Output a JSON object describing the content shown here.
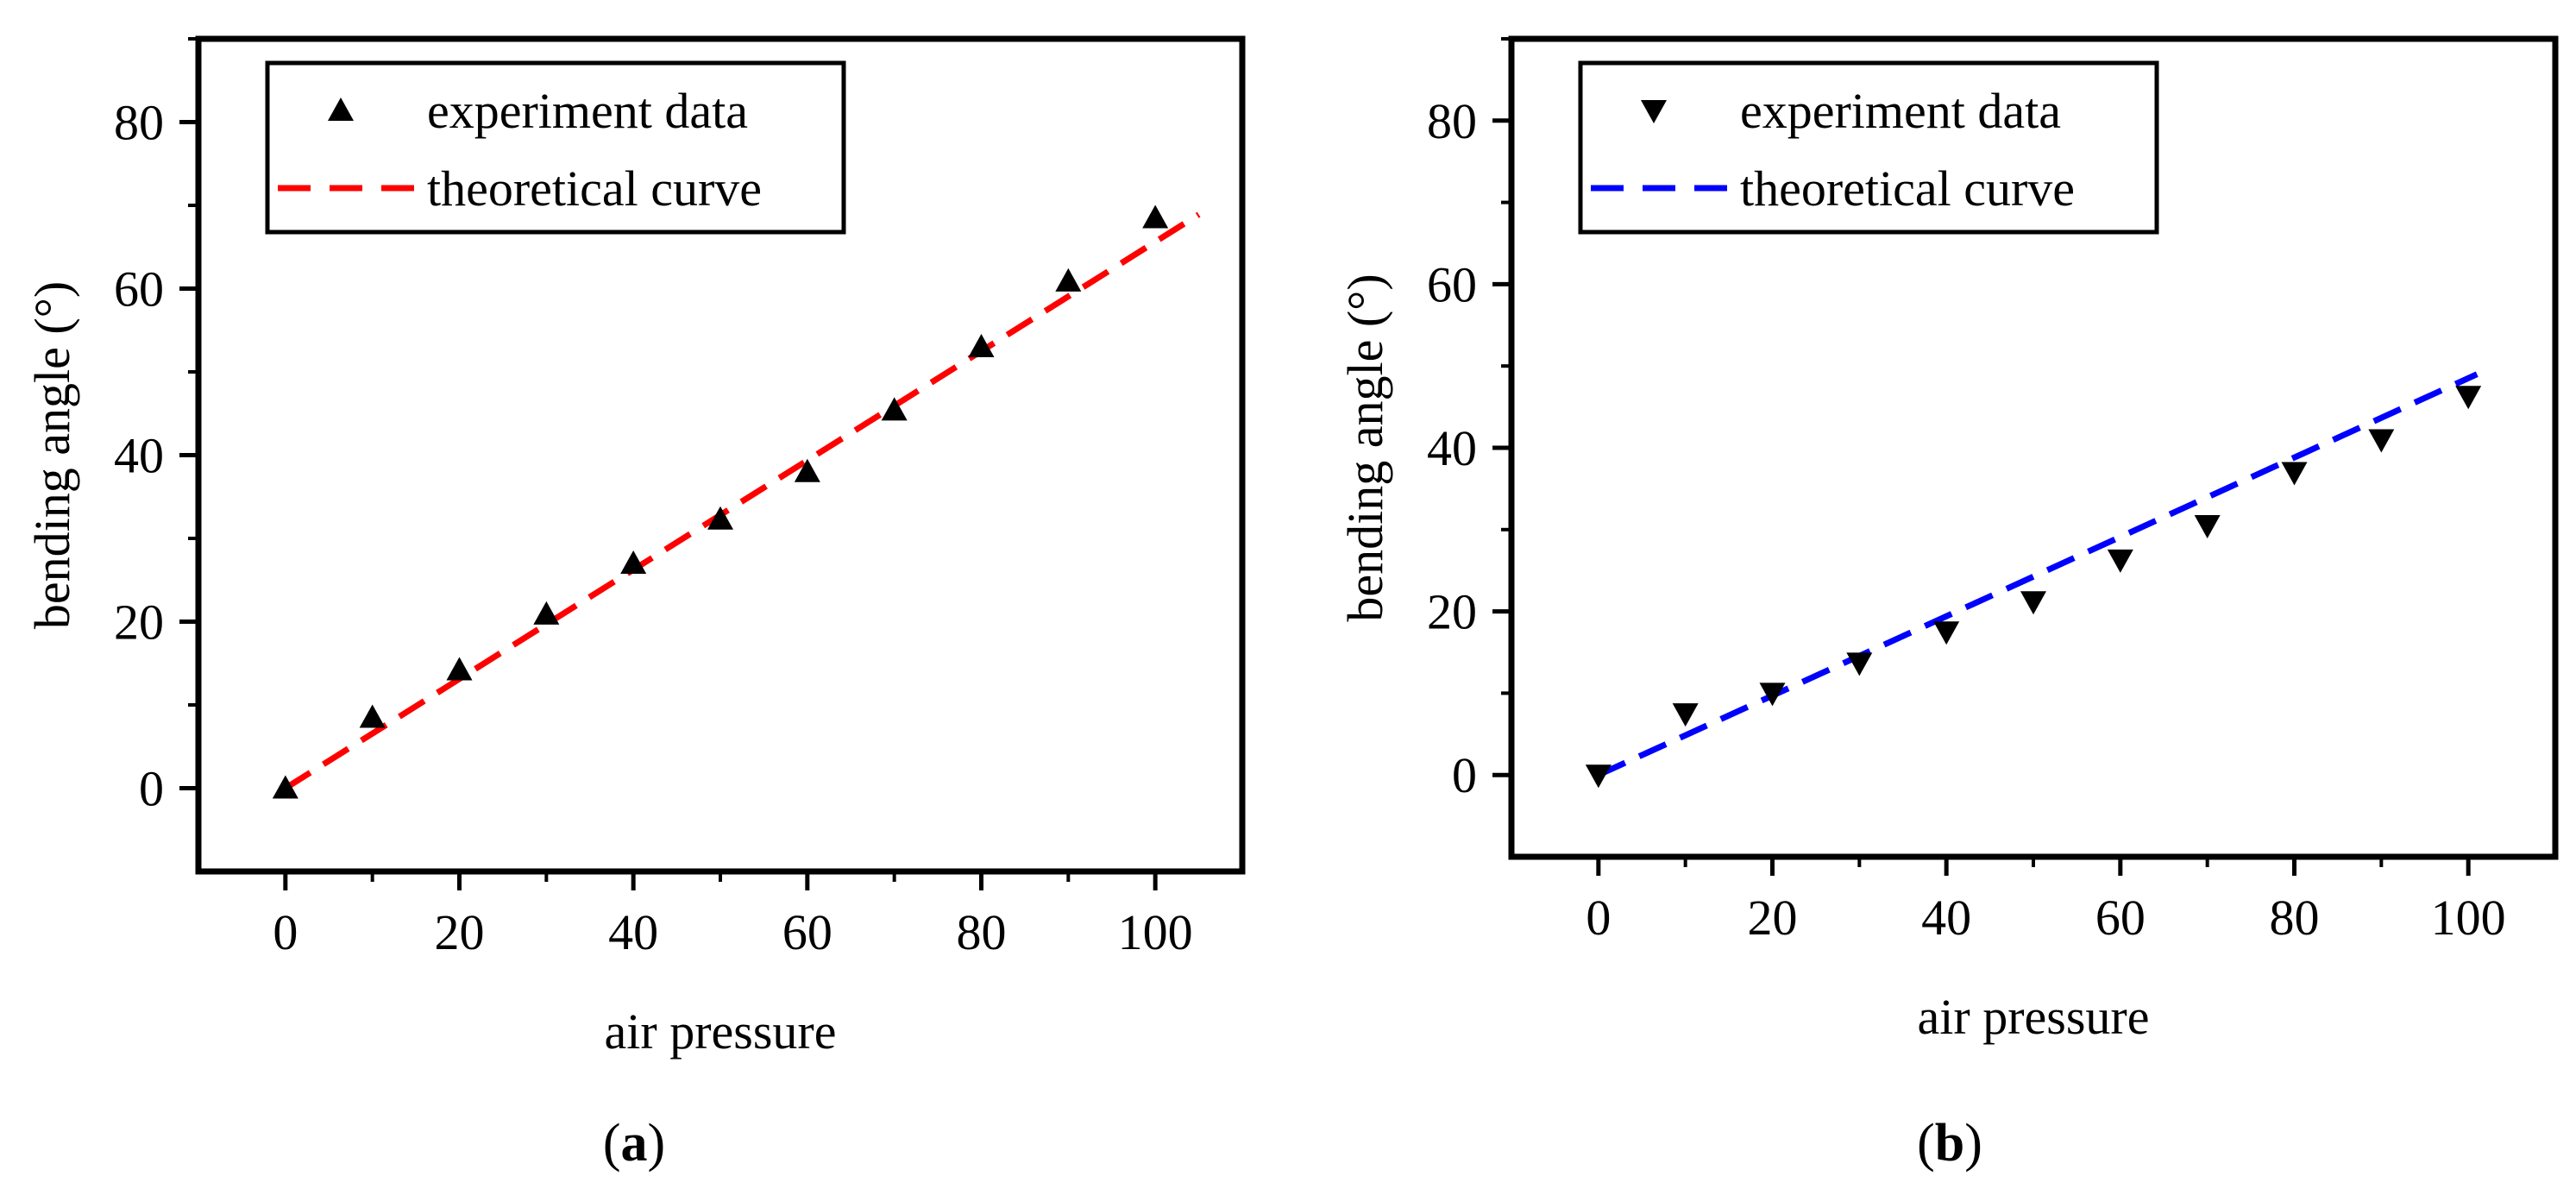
{
  "chart_data": [
    {
      "type": "scatter",
      "panel": "a",
      "caption": {
        "open": "(",
        "letter": "a",
        "close": ")"
      },
      "xlabel": "air pressure",
      "ylabel": "bending angle (°)",
      "xlim": [
        -10,
        110
      ],
      "ylim": [
        -10,
        90
      ],
      "xticks": [
        0,
        20,
        40,
        60,
        80,
        100
      ],
      "yticks": [
        0,
        20,
        40,
        60,
        80
      ],
      "xtick_labels": [
        "0",
        "20",
        "40",
        "60",
        "80",
        "100"
      ],
      "ytick_labels": [
        "0",
        "20",
        "40",
        "60",
        "80"
      ],
      "legend_position": "top-left",
      "curve_color": "#ff0000",
      "marker": "triangle-up",
      "series": [
        {
          "name": "experiment data",
          "kind": "points",
          "x": [
            0,
            10,
            20,
            30,
            40,
            50,
            60,
            70,
            80,
            90,
            100
          ],
          "y": [
            0,
            8.5,
            14.2,
            20.9,
            27.0,
            32.3,
            38.0,
            45.4,
            53.0,
            60.9,
            68.5
          ]
        },
        {
          "name": "theoretical curve",
          "kind": "line",
          "style": "dashed",
          "x": [
            0,
            105
          ],
          "y": [
            0,
            68.9
          ]
        }
      ]
    },
    {
      "type": "scatter",
      "panel": "b",
      "caption": {
        "open": "(",
        "letter": "b",
        "close": ")"
      },
      "xlabel": "air pressure",
      "ylabel": "bending angle (°)",
      "xlim": [
        -10,
        110
      ],
      "ylim": [
        -10,
        90
      ],
      "xticks": [
        0,
        20,
        40,
        60,
        80,
        100
      ],
      "yticks": [
        0,
        20,
        40,
        60,
        80
      ],
      "xtick_labels": [
        "0",
        "20",
        "40",
        "60",
        "80",
        "100"
      ],
      "ytick_labels": [
        "0",
        "20",
        "40",
        "60",
        "80"
      ],
      "legend_position": "top-left",
      "curve_color": "#0000ff",
      "marker": "triangle-down",
      "series": [
        {
          "name": "experiment data",
          "kind": "points",
          "x": [
            0,
            10,
            20,
            30,
            40,
            50,
            60,
            70,
            80,
            90,
            100
          ],
          "y": [
            0,
            7.5,
            10.0,
            13.7,
            17.5,
            21.2,
            26.3,
            30.5,
            37.0,
            41.0,
            46.3
          ]
        },
        {
          "name": "theoretical curve",
          "kind": "line",
          "style": "dashed",
          "x": [
            0,
            101
          ],
          "y": [
            0,
            49.0
          ]
        }
      ]
    }
  ]
}
